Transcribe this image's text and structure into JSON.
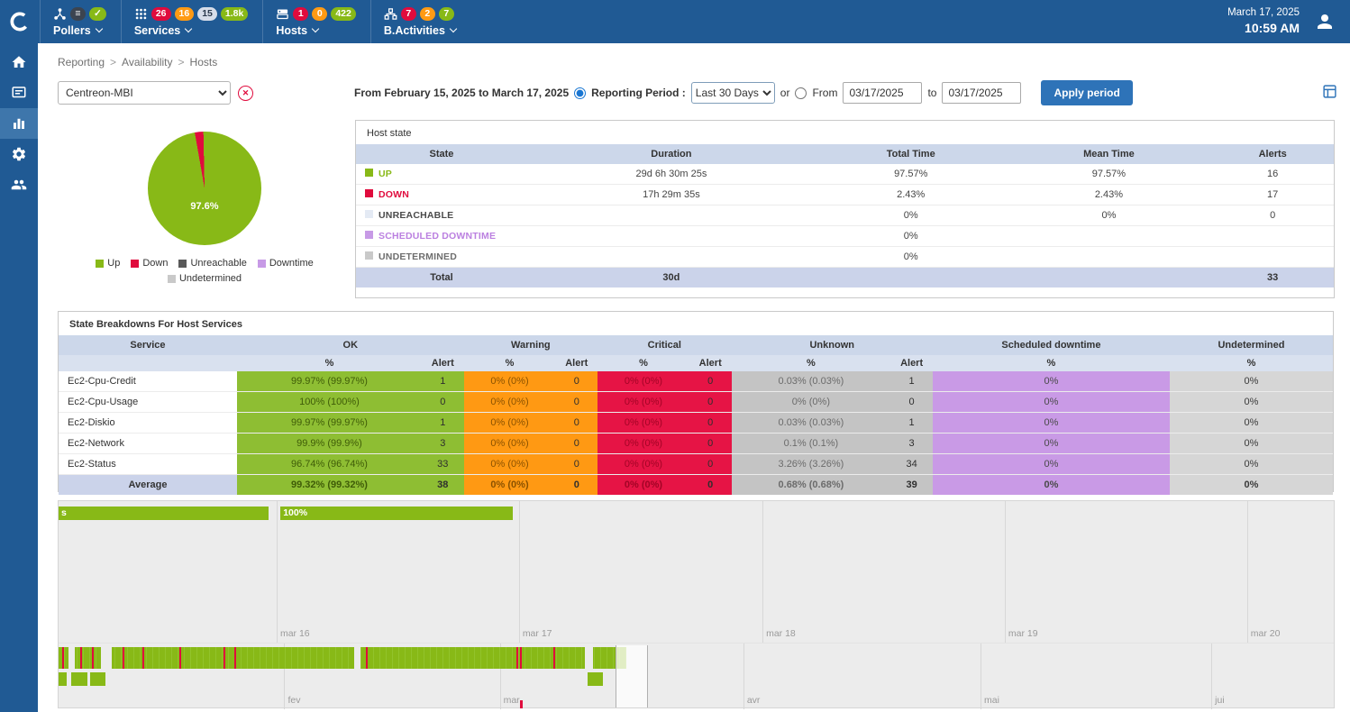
{
  "topbar": {
    "date": "March 17, 2025",
    "time": "10:59 AM",
    "menus": [
      {
        "label": "Pollers",
        "badges": [
          {
            "text": "≡",
            "status": "info"
          },
          {
            "text": "✓",
            "status": "ok"
          }
        ]
      },
      {
        "label": "Services",
        "badges": [
          {
            "text": "26",
            "status": "critical"
          },
          {
            "text": "16",
            "status": "warning"
          },
          {
            "text": "15",
            "status": "pending"
          },
          {
            "text": "1.8k",
            "status": "ok"
          }
        ]
      },
      {
        "label": "Hosts",
        "badges": [
          {
            "text": "1",
            "status": "critical"
          },
          {
            "text": "0",
            "status": "warning"
          },
          {
            "text": "422",
            "status": "ok"
          }
        ]
      },
      {
        "label": "B.Activities",
        "badges": [
          {
            "text": "7",
            "status": "critical"
          },
          {
            "text": "2",
            "status": "warning"
          },
          {
            "text": "7",
            "status": "ok"
          }
        ]
      }
    ]
  },
  "sidebar": {
    "items": [
      {
        "icon": "home-icon",
        "active": false
      },
      {
        "icon": "events-console-icon",
        "active": false
      },
      {
        "icon": "reporting-chart-icon",
        "active": true
      },
      {
        "icon": "configuration-gear-icon",
        "active": false
      },
      {
        "icon": "administration-users-icon",
        "active": false
      }
    ]
  },
  "breadcrumb": {
    "items": [
      "Reporting",
      "Availability",
      "Hosts"
    ],
    "separator": ">"
  },
  "filters": {
    "host_select_value": "Centreon-MBI",
    "range_label": "From February 15, 2025 to March 17, 2025",
    "period_label": "Reporting Period :",
    "period_value": "Last 30 Days",
    "or_label": "or",
    "from_label": "From",
    "from_value": "03/17/2025",
    "to_label": "to",
    "to_value": "03/17/2025",
    "apply_label": "Apply period"
  },
  "pie": {
    "value_label": "97.6%",
    "up_pct": 97.6,
    "down_pct": 2.4,
    "legend": [
      {
        "label": "Up",
        "color": "#88b917"
      },
      {
        "label": "Down",
        "color": "#e00b3d"
      },
      {
        "label": "Unreachable",
        "color": "#595959"
      },
      {
        "label": "Downtime",
        "color": "#c79ae6"
      },
      {
        "label": "Undetermined",
        "color": "#c9c9c9"
      }
    ]
  },
  "host_state": {
    "title": "Host state",
    "headers": [
      "State",
      "Duration",
      "Total Time",
      "Mean Time",
      "Alerts"
    ],
    "rows": [
      {
        "state": "UP",
        "color": "#88b917",
        "text_color": "#88b917",
        "duration": "29d 6h 30m 25s",
        "total": "97.57%",
        "mean": "97.57%",
        "alerts": "16"
      },
      {
        "state": "DOWN",
        "color": "#e00b3d",
        "text_color": "#e00b3d",
        "duration": "17h 29m 35s",
        "total": "2.43%",
        "mean": "2.43%",
        "alerts": "17"
      },
      {
        "state": "UNREACHABLE",
        "color": "#e4eaf4",
        "text_color": "#4a4a4a",
        "duration": "",
        "total": "0%",
        "mean": "0%",
        "alerts": "0"
      },
      {
        "state": "SCHEDULED DOWNTIME",
        "color": "#c79ae6",
        "text_color": "#bb80e0",
        "duration": "",
        "total": "0%",
        "mean": "",
        "alerts": ""
      },
      {
        "state": "UNDETERMINED",
        "color": "#c9c9c9",
        "text_color": "#6e6e6e",
        "duration": "",
        "total": "0%",
        "mean": "",
        "alerts": ""
      }
    ],
    "total": {
      "label": "Total",
      "duration": "30d",
      "alerts": "33"
    }
  },
  "breakdown": {
    "title": "State Breakdowns For Host Services",
    "group_headers": [
      "Service",
      "OK",
      "Warning",
      "Critical",
      "Unknown",
      "Scheduled downtime",
      "Undetermined"
    ],
    "sub_headers": [
      "%",
      "Alert",
      "%",
      "Alert",
      "%",
      "Alert",
      "%",
      "Alert",
      "%",
      "%"
    ],
    "rows": [
      {
        "service": "Ec2-Cpu-Credit",
        "ok_pct": "99.97% (99.97%)",
        "ok_alert": "1",
        "warning_pct": "0% (0%)",
        "warning_alert": "0",
        "critical_pct": "0% (0%)",
        "critical_alert": "0",
        "unknown_pct": "0.03% (0.03%)",
        "unknown_alert": "1",
        "downtime_pct": "0%",
        "undetermined_pct": "0%"
      },
      {
        "service": "Ec2-Cpu-Usage",
        "ok_pct": "100% (100%)",
        "ok_alert": "0",
        "warning_pct": "0% (0%)",
        "warning_alert": "0",
        "critical_pct": "0% (0%)",
        "critical_alert": "0",
        "unknown_pct": "0% (0%)",
        "unknown_alert": "0",
        "downtime_pct": "0%",
        "undetermined_pct": "0%"
      },
      {
        "service": "Ec2-Diskio",
        "ok_pct": "99.97% (99.97%)",
        "ok_alert": "1",
        "warning_pct": "0% (0%)",
        "warning_alert": "0",
        "critical_pct": "0% (0%)",
        "critical_alert": "0",
        "unknown_pct": "0.03% (0.03%)",
        "unknown_alert": "1",
        "downtime_pct": "0%",
        "undetermined_pct": "0%"
      },
      {
        "service": "Ec2-Network",
        "ok_pct": "99.9% (99.9%)",
        "ok_alert": "3",
        "warning_pct": "0% (0%)",
        "warning_alert": "0",
        "critical_pct": "0% (0%)",
        "critical_alert": "0",
        "unknown_pct": "0.1% (0.1%)",
        "unknown_alert": "3",
        "downtime_pct": "0%",
        "undetermined_pct": "0%"
      },
      {
        "service": "Ec2-Status",
        "ok_pct": "96.74% (96.74%)",
        "ok_alert": "33",
        "warning_pct": "0% (0%)",
        "warning_alert": "0",
        "critical_pct": "0% (0%)",
        "critical_alert": "0",
        "unknown_pct": "3.26% (3.26%)",
        "unknown_alert": "34",
        "downtime_pct": "0%",
        "undetermined_pct": "0%"
      }
    ],
    "average": {
      "service": "Average",
      "ok_pct": "99.32% (99.32%)",
      "ok_alert": "38",
      "warning_pct": "0% (0%)",
      "warning_alert": "0",
      "critical_pct": "0% (0%)",
      "critical_alert": "0",
      "unknown_pct": "0.68% (0.68%)",
      "unknown_alert": "39",
      "downtime_pct": "0%",
      "undetermined_pct": "0%"
    }
  },
  "timeline": {
    "top_axis": [
      {
        "label": "mar 16",
        "pct": 17.1
      },
      {
        "label": "mar 17",
        "pct": 36.1
      },
      {
        "label": "mar 18",
        "pct": 55.2
      },
      {
        "label": "mar 19",
        "pct": 74.2
      },
      {
        "label": "mar 20",
        "pct": 93.2
      }
    ],
    "bars": [
      {
        "label": "s",
        "start_pct": 0,
        "width_pct": 16.5
      },
      {
        "label": "100%",
        "start_pct": 17.4,
        "width_pct": 18.2
      }
    ],
    "bottom_axis": [
      {
        "label": "fev",
        "pct": 17.7
      },
      {
        "label": "mar",
        "pct": 34.6
      },
      {
        "label": "avr",
        "pct": 53.7
      },
      {
        "label": "mai",
        "pct": 72.3
      },
      {
        "label": "jui",
        "pct": 90.4
      }
    ],
    "detail_band": {
      "width_pct": 44.5,
      "red_marks_pct": [
        0.3,
        1.7,
        2.6,
        5.0,
        6.6,
        9.5,
        12.9,
        13.8,
        24.1,
        35.9,
        36.15,
        38.8
      ],
      "gaps": [
        {
          "start_pct": 0.8,
          "width_pct": 0.5
        },
        {
          "start_pct": 3.3,
          "width_pct": 0.9
        },
        {
          "start_pct": 23.2,
          "width_pct": 0.5
        },
        {
          "start_pct": 41.3,
          "width_pct": 0.6
        }
      ]
    },
    "blocks": [
      {
        "start_pct": 0,
        "width_pct": 0.65
      },
      {
        "start_pct": 1.0,
        "width_pct": 1.25
      },
      {
        "start_pct": 2.5,
        "width_pct": 1.2
      },
      {
        "start_pct": 41.5,
        "width_pct": 1.2
      }
    ],
    "selection": {
      "start_pct": 43.7,
      "width_pct": 2.5
    },
    "red_tick_pct": 36.2
  }
}
